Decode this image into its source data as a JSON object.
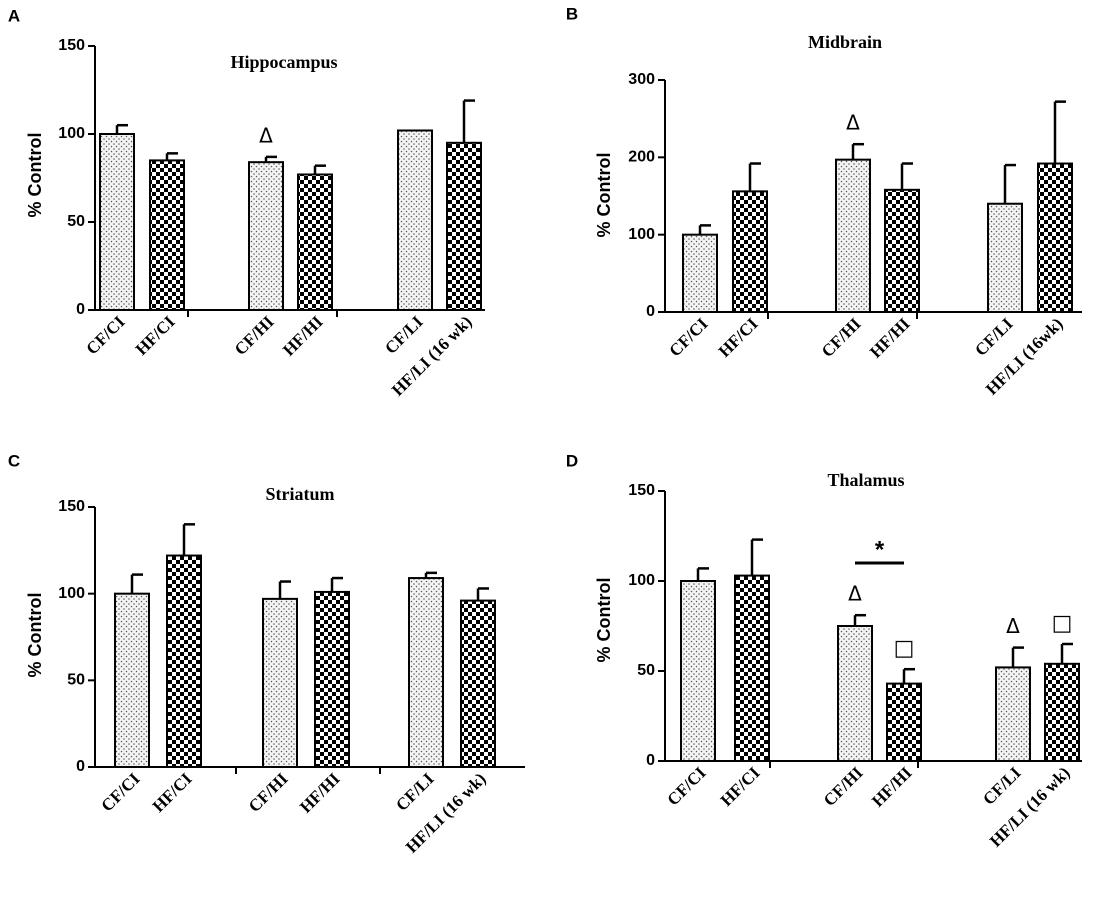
{
  "figure": {
    "colors": {
      "ink": "#000000",
      "background": "#ffffff",
      "dotted_fill": "#f4f4f4"
    }
  },
  "chart_data": [
    {
      "panel": "A",
      "type": "bar",
      "title": "Hippocampus",
      "ylabel": "% Control",
      "xlabel": "",
      "ylim": [
        0,
        150
      ],
      "yticks": [
        0,
        50,
        100,
        150
      ],
      "categories": [
        "CF/CI",
        "HF/CI",
        "CF/HI",
        "HF/HI",
        "CF/LI",
        "HF/LI (16 wk)"
      ],
      "groups": [
        [
          "CF/CI",
          "HF/CI"
        ],
        [
          "CF/HI",
          "HF/HI"
        ],
        [
          "CF/LI",
          "HF/LI (16 wk)"
        ]
      ],
      "values": [
        100,
        85,
        84,
        77,
        102,
        95
      ],
      "errors": [
        5,
        4,
        3,
        5,
        0,
        24
      ],
      "patterns": [
        "dots",
        "checker",
        "dots",
        "checker",
        "dots",
        "checker"
      ],
      "annotations": [
        {
          "type": "delta",
          "text": "Δ",
          "bar": 2
        }
      ]
    },
    {
      "panel": "B",
      "type": "bar",
      "title": "Midbrain",
      "ylabel": "% Control",
      "xlabel": "",
      "ylim": [
        0,
        300
      ],
      "yticks": [
        0,
        100,
        200,
        300
      ],
      "categories": [
        "CF/CI",
        "HF/CI",
        "CF/HI",
        "HF/HI",
        "CF/LI",
        "HF/LI (16wk)"
      ],
      "groups": [
        [
          "CF/CI",
          "HF/CI"
        ],
        [
          "CF/HI",
          "HF/HI"
        ],
        [
          "CF/LI",
          "HF/LI (16wk)"
        ]
      ],
      "values": [
        100,
        156,
        197,
        158,
        140,
        192
      ],
      "errors": [
        12,
        36,
        20,
        34,
        50,
        80
      ],
      "patterns": [
        "dots",
        "checker",
        "dots",
        "checker",
        "dots",
        "checker"
      ],
      "annotations": [
        {
          "type": "delta",
          "text": "Δ",
          "bar": 2
        }
      ]
    },
    {
      "panel": "C",
      "type": "bar",
      "title": "Striatum",
      "ylabel": "% Control",
      "xlabel": "",
      "ylim": [
        0,
        150
      ],
      "yticks": [
        0,
        50,
        100,
        150
      ],
      "categories": [
        "CF/CI",
        "HF/CI",
        "CF/HI",
        "HF/HI",
        "CF/LI",
        "HF/LI (16 wk)"
      ],
      "groups": [
        [
          "CF/CI",
          "HF/CI"
        ],
        [
          "CF/HI",
          "HF/HI"
        ],
        [
          "CF/LI",
          "HF/LI (16 wk)"
        ]
      ],
      "values": [
        100,
        122,
        97,
        101,
        109,
        96
      ],
      "errors": [
        11,
        18,
        10,
        8,
        3,
        7
      ],
      "patterns": [
        "dots",
        "checker",
        "dots",
        "checker",
        "dots",
        "checker"
      ],
      "annotations": []
    },
    {
      "panel": "D",
      "type": "bar",
      "title": "Thalamus",
      "ylabel": "% Control",
      "xlabel": "",
      "ylim": [
        0,
        150
      ],
      "yticks": [
        0,
        50,
        100,
        150
      ],
      "categories": [
        "CF/CI",
        "HF/CI",
        "CF/HI",
        "HF/HI",
        "CF/LI",
        "HF/LI (16 wk)"
      ],
      "groups": [
        [
          "CF/CI",
          "HF/CI"
        ],
        [
          "CF/HI",
          "HF/HI"
        ],
        [
          "CF/LI",
          "HF/LI (16 wk)"
        ]
      ],
      "values": [
        100,
        103,
        75,
        43,
        52,
        54
      ],
      "errors": [
        7,
        20,
        6,
        8,
        11,
        11
      ],
      "patterns": [
        "dots",
        "checker",
        "dots",
        "checker",
        "dots",
        "checker"
      ],
      "annotations": [
        {
          "type": "delta",
          "text": "Δ",
          "bar": 2
        },
        {
          "type": "square",
          "text": "□",
          "bar": 3
        },
        {
          "type": "delta",
          "text": "Δ",
          "bar": 4
        },
        {
          "type": "square",
          "text": "□",
          "bar": 5
        },
        {
          "type": "significance",
          "text": "*",
          "from_bar": 2,
          "to_bar": 3,
          "at_value": 110
        }
      ]
    }
  ]
}
